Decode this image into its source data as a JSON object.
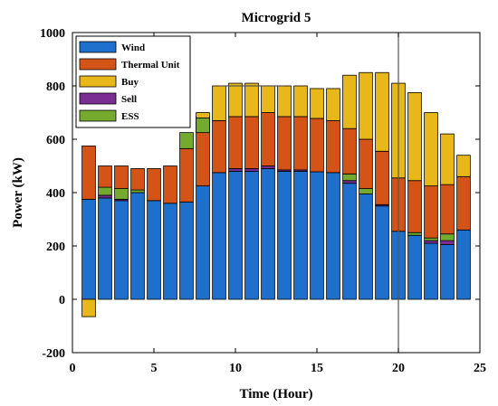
{
  "chart_data": {
    "type": "bar",
    "stacked": true,
    "title": "Microgrid 5",
    "xlabel": "Time (Hour)",
    "ylabel": "Power (kW)",
    "xlim": [
      0,
      25
    ],
    "ylim": [
      -200,
      1000
    ],
    "xticks": [
      "0",
      "5",
      "10",
      "15",
      "20",
      "25"
    ],
    "yticks": [
      "-200",
      "0",
      "200",
      "400",
      "600",
      "800",
      "1000"
    ],
    "grid": false,
    "legend_position": "top-left",
    "colors": {
      "Wind": "#1f6fcc",
      "Thermal Unit": "#d45316",
      "Buy": "#e8b81a",
      "Sell": "#7a2e91",
      "ESS": "#74ab2f"
    },
    "x": [
      1,
      2,
      3,
      4,
      5,
      6,
      7,
      8,
      9,
      10,
      11,
      12,
      13,
      14,
      15,
      16,
      17,
      18,
      19,
      20,
      21,
      22,
      23,
      24
    ],
    "series": [
      {
        "name": "Wind",
        "values": [
          375,
          380,
          370,
          400,
          370,
          360,
          365,
          425,
          475,
          480,
          480,
          490,
          480,
          480,
          478,
          475,
          435,
          395,
          350,
          255,
          240,
          210,
          205,
          260
        ]
      },
      {
        "name": "Sell",
        "values": [
          0,
          10,
          5,
          0,
          0,
          0,
          0,
          0,
          0,
          10,
          10,
          10,
          5,
          5,
          0,
          0,
          10,
          0,
          5,
          0,
          0,
          10,
          15,
          0
        ]
      },
      {
        "name": "ESS",
        "values": [
          0,
          30,
          40,
          10,
          0,
          0,
          0,
          0,
          0,
          0,
          0,
          0,
          0,
          0,
          0,
          0,
          25,
          20,
          0,
          0,
          10,
          10,
          25,
          0
        ]
      },
      {
        "name": "Thermal Unit",
        "values": [
          200,
          80,
          85,
          80,
          120,
          140,
          200,
          200,
          195,
          195,
          195,
          200,
          200,
          200,
          200,
          195,
          170,
          185,
          200,
          200,
          195,
          195,
          185,
          200
        ]
      },
      {
        "name": "Buy",
        "values": [
          -65,
          0,
          0,
          0,
          0,
          0,
          0,
          60,
          130,
          125,
          125,
          100,
          115,
          115,
          112,
          120,
          200,
          250,
          295,
          355,
          330,
          275,
          190,
          80
        ]
      }
    ],
    "extra_segments": [
      {
        "name": "ESS",
        "x": 7,
        "bottom": 565,
        "top": 625
      },
      {
        "name": "ESS",
        "x": 8,
        "bottom": 625,
        "top": 680
      },
      {
        "name": "Buy",
        "x": 8,
        "bottom": 680,
        "top": 700
      }
    ],
    "reference_lines": [
      {
        "orientation": "horizontal",
        "y": 800,
        "x_from": 9,
        "x_to": 13
      },
      {
        "orientation": "vertical",
        "x": 20,
        "y_from": -200,
        "y_to": 1000
      }
    ]
  }
}
